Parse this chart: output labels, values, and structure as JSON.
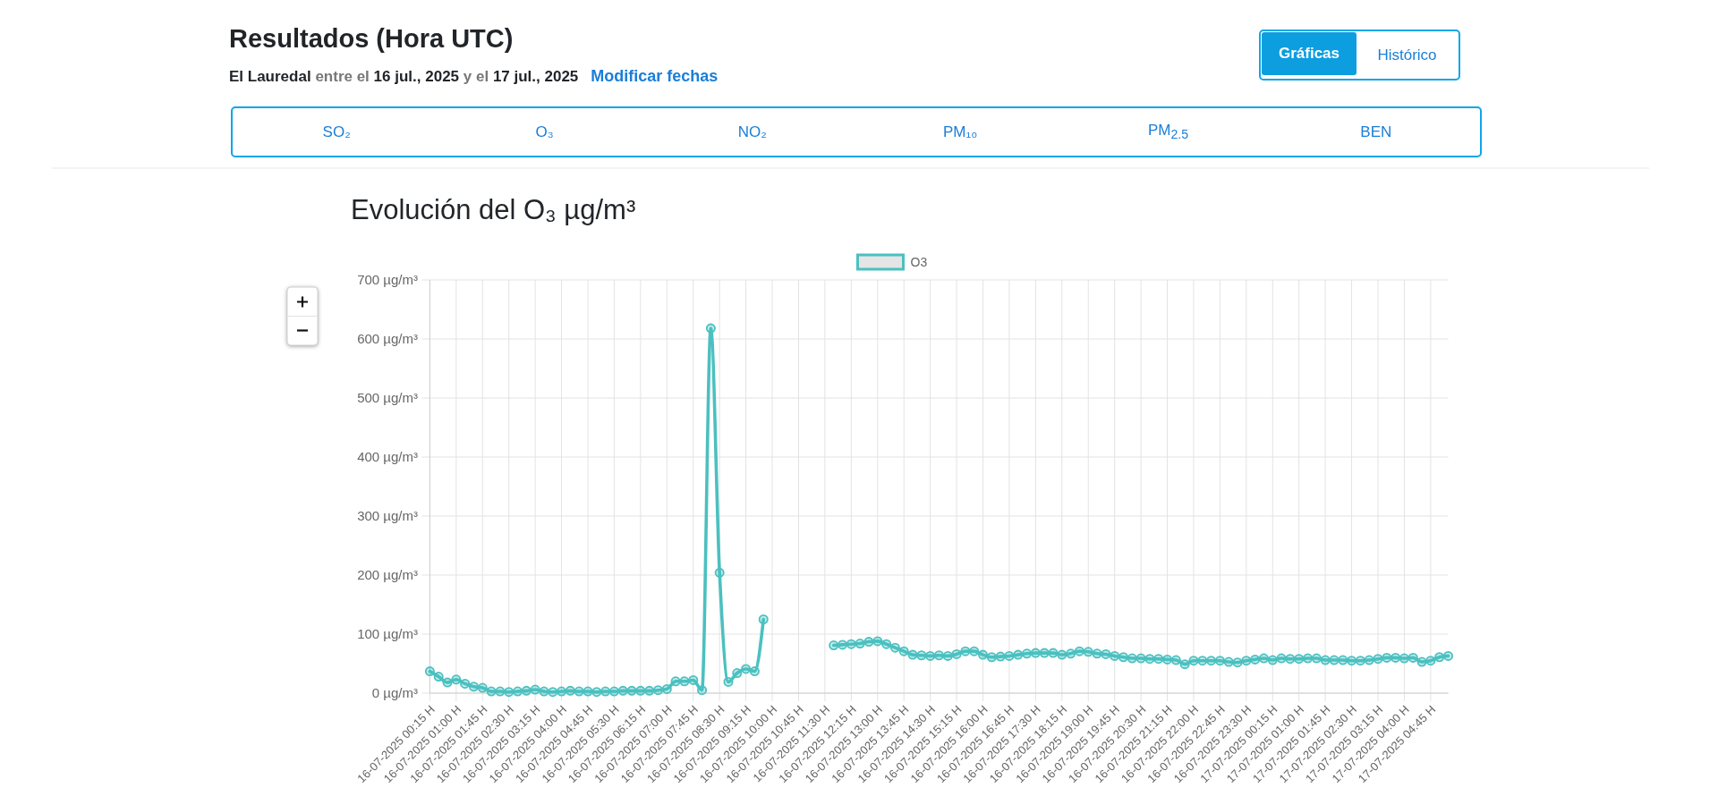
{
  "chart_data": {
    "type": "line",
    "title": "Evolución del O₃ µg/m³",
    "annotations": [
      "Resultados (Hora UTC)",
      "El Lauredal",
      "entre el",
      "16 jul., 2025",
      "y el",
      "17 jul., 2025",
      "Modificar fechas",
      "Gráficas",
      "Histórico",
      "SO₂",
      "O₃",
      "NO₂",
      "PM₁₀",
      "PM$_{2.5}$",
      "BEN"
    ],
    "categories": [
      "16-07-2025 00:15 H",
      null,
      null,
      "16-07-2025 01:00 H",
      null,
      null,
      "16-07-2025 01:45 H",
      null,
      null,
      "16-07-2025 02:30 H",
      null,
      null,
      "16-07-2025 03:15 H",
      null,
      null,
      "16-07-2025 04:00 H",
      null,
      null,
      "16-07-2025 04:45 H",
      null,
      null,
      "16-07-2025 05:30 H",
      null,
      null,
      "16-07-2025 06:15 H",
      null,
      null,
      "16-07-2025 07:00 H",
      null,
      null,
      "16-07-2025 07:45 H",
      null,
      null,
      "16-07-2025 08:30 H",
      null,
      null,
      "16-07-2025 09:15 H",
      null,
      null,
      "16-07-2025 10:00 H",
      null,
      null,
      "16-07-2025 10:45 H",
      null,
      null,
      "16-07-2025 11:30 H",
      null,
      null,
      "16-07-2025 12:15 H",
      null,
      null,
      "16-07-2025 13:00 H",
      null,
      null,
      "16-07-2025 13:45 H",
      null,
      null,
      "16-07-2025 14:30 H",
      null,
      null,
      "16-07-2025 15:15 H",
      null,
      null,
      "16-07-2025 16:00 H",
      null,
      null,
      "16-07-2025 16:45 H",
      null,
      null,
      "16-07-2025 17:30 H",
      null,
      null,
      "16-07-2025 18:15 H",
      null,
      null,
      "16-07-2025 19:00 H",
      null,
      null,
      "16-07-2025 19:45 H",
      null,
      null,
      "16-07-2025 20:30 H",
      null,
      null,
      "16-07-2025 21:15 H",
      null,
      null,
      "16-07-2025 22:00 H",
      null,
      null,
      "16-07-2025 22:45 H",
      null,
      null,
      "16-07-2025 23:30 H",
      null,
      null,
      "17-07-2025 00:15 H",
      null,
      null,
      "17-07-2025 01:00 H",
      null,
      null,
      "17-07-2025 01:45 H",
      null,
      null,
      "17-07-2025 02:30 H",
      null,
      null,
      "17-07-2025 03:15 H",
      null,
      null,
      "17-07-2025 04:00 H",
      null,
      null,
      "17-07-2025 04:45 H",
      null,
      null
    ],
    "series": [
      {
        "name": "O3",
        "color": "#4bc0c0",
        "values": [
          37,
          28,
          18,
          23,
          16,
          11,
          9,
          3,
          3,
          2,
          3,
          4,
          6,
          3,
          2,
          3,
          4,
          3,
          3,
          2,
          3,
          3,
          4,
          4,
          4,
          4,
          5,
          7,
          20,
          20,
          22,
          5,
          618,
          204,
          19,
          34,
          41,
          37,
          125,
          null,
          null,
          null,
          null,
          null,
          null,
          null,
          81,
          82,
          83,
          84,
          87,
          88,
          83,
          77,
          71,
          65,
          64,
          63,
          64,
          63,
          66,
          71,
          71,
          65,
          61,
          62,
          63,
          65,
          67,
          68,
          68,
          68,
          65,
          67,
          71,
          70,
          67,
          66,
          63,
          61,
          59,
          59,
          58,
          58,
          57,
          56,
          49,
          55,
          55,
          55,
          55,
          53,
          52,
          55,
          57,
          59,
          56,
          59,
          58,
          58,
          59,
          59,
          56,
          56,
          56,
          55,
          55,
          56,
          58,
          60,
          60,
          59,
          60,
          53,
          55,
          61,
          63
        ]
      }
    ],
    "ylim": [
      0,
      700
    ],
    "yticks": [
      {
        "value": 0,
        "label": "0 µg/m³"
      },
      {
        "value": 100,
        "label": "100 µg/m³"
      },
      {
        "value": 200,
        "label": "200 µg/m³"
      },
      {
        "value": 300,
        "label": "300 µg/m³"
      },
      {
        "value": 400,
        "label": "400 µg/m³"
      },
      {
        "value": 500,
        "label": "500 µg/m³"
      },
      {
        "value": 600,
        "label": "600 µg/m³"
      },
      {
        "value": 700,
        "label": "700 µg/m³"
      }
    ],
    "grid": true,
    "legend": "top",
    "marker": "circle"
  }
}
